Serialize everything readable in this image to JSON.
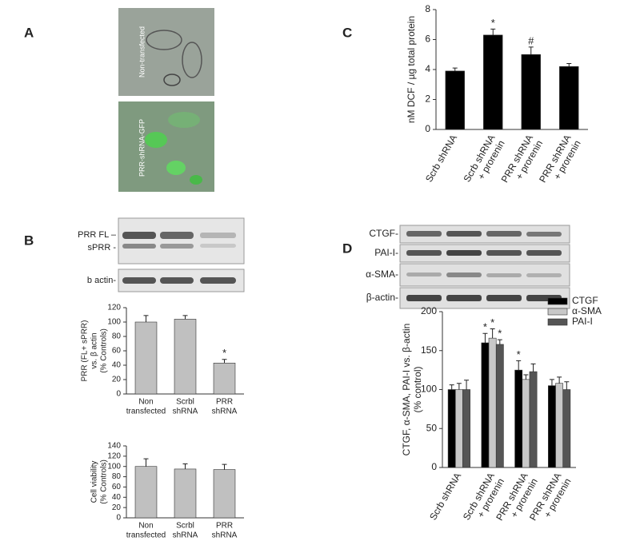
{
  "panel_labels": [
    "A",
    "B",
    "C",
    "D"
  ],
  "images": [
    "Non-transfected",
    "PRR-shRNA-GFP"
  ],
  "blot_b": [
    "PRR FL –",
    "sPRR -",
    "b actin-"
  ],
  "blot_d": [
    "CTGF-",
    "PAI-I-",
    "α-SMA-",
    "β-actin-"
  ],
  "chart_data": [
    {
      "type": "bar",
      "y_label": [
        "PRR (FL+ sPRR)",
        "vs. β actin",
        "(% Controls)"
      ],
      "categories": [
        [
          "Non",
          "transfected"
        ],
        [
          "Scrbl",
          "shRNA"
        ],
        [
          "PRR",
          "shRNA"
        ]
      ],
      "values": [
        100,
        104,
        43
      ],
      "errors": [
        9,
        5,
        5
      ],
      "markers": [
        null,
        null,
        "*"
      ],
      "color": "#c0c0c0",
      "ylim": [
        0,
        120
      ],
      "yticks": [
        0,
        20,
        40,
        60,
        80,
        100,
        120
      ]
    },
    {
      "type": "bar",
      "y_label": [
        "Cell viability",
        "(% Controls)"
      ],
      "categories": [
        [
          "Non",
          "transfected"
        ],
        [
          "Scrbl",
          "shRNA"
        ],
        [
          "PRR",
          "shRNA"
        ]
      ],
      "values": [
        100,
        95,
        94
      ],
      "errors": [
        15,
        10,
        10
      ],
      "color": "#c0c0c0",
      "ylim": [
        0,
        140
      ],
      "yticks": [
        0,
        20,
        40,
        60,
        80,
        100,
        120,
        140
      ]
    },
    {
      "type": "bar",
      "y_label": [
        "nM DCF / µg total protein"
      ],
      "categories": [
        [
          "Scrb shRNA"
        ],
        [
          "Scrb shRNA",
          "+ prorenin"
        ],
        [
          "PRR shRNA",
          "+ prorenin"
        ],
        [
          "PRR shRNA",
          "+ prorenin"
        ]
      ],
      "values": [
        3.9,
        6.3,
        5.0,
        4.2
      ],
      "errors": [
        0.2,
        0.4,
        0.5,
        0.2
      ],
      "markers": [
        null,
        "*",
        "#",
        null
      ],
      "color": "#000000",
      "ylim": [
        0,
        8
      ],
      "yticks": [
        0,
        2,
        4,
        6,
        8
      ]
    },
    {
      "type": "bar",
      "y_label": [
        "CTGF, α-SMA, PAI-I vs. β-actin",
        "(% control)"
      ],
      "categories": [
        [
          "Scrb shRNA"
        ],
        [
          "Scrb shRNA",
          "+ prorenin"
        ],
        [
          "PRR shRNA",
          "+ prorenin"
        ],
        [
          "PRR shRNA",
          "+ prorenin"
        ]
      ],
      "series": [
        {
          "name": "CTGF",
          "color": "#000000",
          "values": [
            100,
            160,
            125,
            105
          ],
          "errors": [
            6,
            12,
            12,
            8
          ],
          "markers": [
            null,
            "*",
            "*",
            null
          ]
        },
        {
          "name": "α-SMA",
          "color": "#c8c8c8",
          "values": [
            100,
            166,
            113,
            108
          ],
          "errors": [
            8,
            12,
            6,
            8
          ],
          "markers": [
            null,
            "*",
            null,
            null
          ]
        },
        {
          "name": "PAI-I",
          "color": "#555555",
          "values": [
            100,
            158,
            123,
            100
          ],
          "errors": [
            12,
            6,
            10,
            10
          ],
          "markers": [
            null,
            "*",
            null,
            null
          ]
        }
      ],
      "ylim": [
        0,
        200
      ],
      "yticks": [
        0,
        50,
        100,
        150,
        200
      ],
      "legend": "upper right"
    }
  ]
}
